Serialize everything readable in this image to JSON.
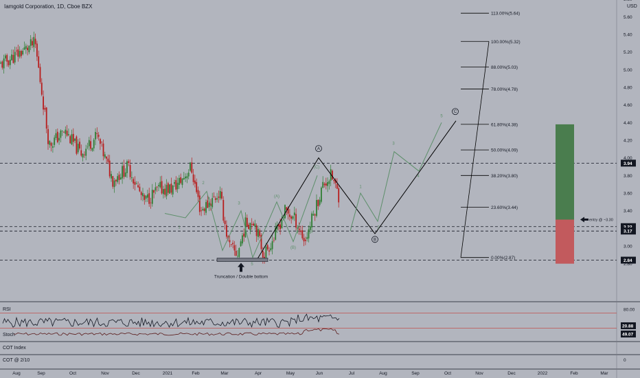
{
  "header": {
    "title": "Iamgold Corporation, 1D, Cboe BZX",
    "currency": "USD"
  },
  "colors": {
    "background": "#b2b5be",
    "bull": "#2e7d32",
    "bear": "#b71c1c",
    "wave_black": "#000000",
    "wave_green": "#5d8f6a",
    "fib": "#000000",
    "profit_zone": "#4a7d4e",
    "loss_zone": "#c25a5d",
    "rsi_level": "#c0504d",
    "price_tag": "#131722"
  },
  "chart_data": [
    {
      "type": "candlestick",
      "title": "Iamgold Corporation, 1D, Cboe BZX",
      "x_axis_labels": [
        "Aug",
        "Sep",
        "Oct",
        "Nov",
        "Dec",
        "2021",
        "Feb",
        "Mar",
        "Apr",
        "May",
        "Jun",
        "Jul",
        "Aug",
        "Sep",
        "Oct",
        "Nov",
        "Dec",
        "2022",
        "Feb",
        "Mar"
      ],
      "y_axis": {
        "unit": "USD",
        "range": [
          2.6,
          5.8
        ],
        "ticks": [
          "2.80",
          "3.00",
          "3.20",
          "3.40",
          "3.60",
          "3.80",
          "4.00",
          "4.20",
          "4.40",
          "4.60",
          "4.80",
          "5.00",
          "5.20",
          "5.40",
          "5.60",
          "5.80"
        ]
      },
      "price_path": [
        {
          "x": "Aug",
          "y": 5.05
        },
        {
          "x": "Aug",
          "y": 5.3
        },
        {
          "x": "Sep",
          "y": 4.15
        },
        {
          "x": "Sep",
          "y": 4.3
        },
        {
          "x": "Oct",
          "y": 4.05
        },
        {
          "x": "Oct",
          "y": 4.25
        },
        {
          "x": "Nov",
          "y": 3.75
        },
        {
          "x": "Nov",
          "y": 3.9
        },
        {
          "x": "Dec",
          "y": 3.5
        },
        {
          "x": "Dec",
          "y": 3.65
        },
        {
          "x": "2021",
          "y": 3.65
        },
        {
          "x": "2021",
          "y": 3.75
        },
        {
          "x": "2021",
          "y": 3.9
        },
        {
          "x": "Feb",
          "y": 3.4
        },
        {
          "x": "Feb",
          "y": 3.5
        },
        {
          "x": "Feb",
          "y": 3.6
        },
        {
          "x": "Mar",
          "y": 3.0
        },
        {
          "x": "Mar",
          "y": 2.9
        },
        {
          "x": "Mar",
          "y": 3.25
        },
        {
          "x": "Mar",
          "y": 3.3
        },
        {
          "x": "Apr",
          "y": 2.9
        },
        {
          "x": "Apr",
          "y": 3.1
        },
        {
          "x": "Apr",
          "y": 3.4
        },
        {
          "x": "May",
          "y": 3.3
        },
        {
          "x": "May",
          "y": 3.05
        },
        {
          "x": "May",
          "y": 3.4
        },
        {
          "x": "Jun",
          "y": 3.7
        },
        {
          "x": "Jun",
          "y": 3.8
        },
        {
          "x": "Jun",
          "y": 3.55
        },
        {
          "x": "Jun",
          "y": 3.2
        }
      ],
      "horizontal_levels": [
        3.94,
        3.22,
        3.17,
        2.84
      ],
      "price_tags": [
        "3.94",
        "3.22",
        "3.17",
        "2.84"
      ],
      "fibonacci": [
        {
          "label": "113.00%(5.64)",
          "price": 5.64
        },
        {
          "label": "100.00%(5.32)",
          "price": 5.32
        },
        {
          "label": "88.00%(5.03)",
          "price": 5.03
        },
        {
          "label": "78.00%(4.78)",
          "price": 4.78
        },
        {
          "label": "61.80%(4.38)",
          "price": 4.38
        },
        {
          "label": "50.00%(4.09)",
          "price": 4.09
        },
        {
          "label": "38.20%(3.80)",
          "price": 3.8
        },
        {
          "label": "23.60%(3.44)",
          "price": 3.44
        },
        {
          "label": "0.00%(2.87)",
          "price": 2.87
        }
      ],
      "wave_labels": [
        "1",
        "2",
        "3",
        "4",
        "5",
        "(A)",
        "(B)",
        "(C)",
        "A",
        "B",
        "C"
      ],
      "position": {
        "entry_label": "entry @ ~3.30",
        "entry": 3.3,
        "target": 4.38,
        "stop": 2.8
      },
      "annotation": "Truncation / Double bottom"
    },
    {
      "type": "line",
      "title": "RSI",
      "y_axis": {
        "ticks": [
          "80.00",
          "40.00"
        ]
      },
      "tags": [
        "20.88",
        "49.07"
      ]
    },
    {
      "type": "line",
      "title": "Stoch"
    },
    {
      "type": "line",
      "title": "COT Index"
    },
    {
      "type": "line",
      "title": "COT @ 2/10",
      "y_axis": {
        "ticks": [
          "0"
        ]
      }
    }
  ]
}
